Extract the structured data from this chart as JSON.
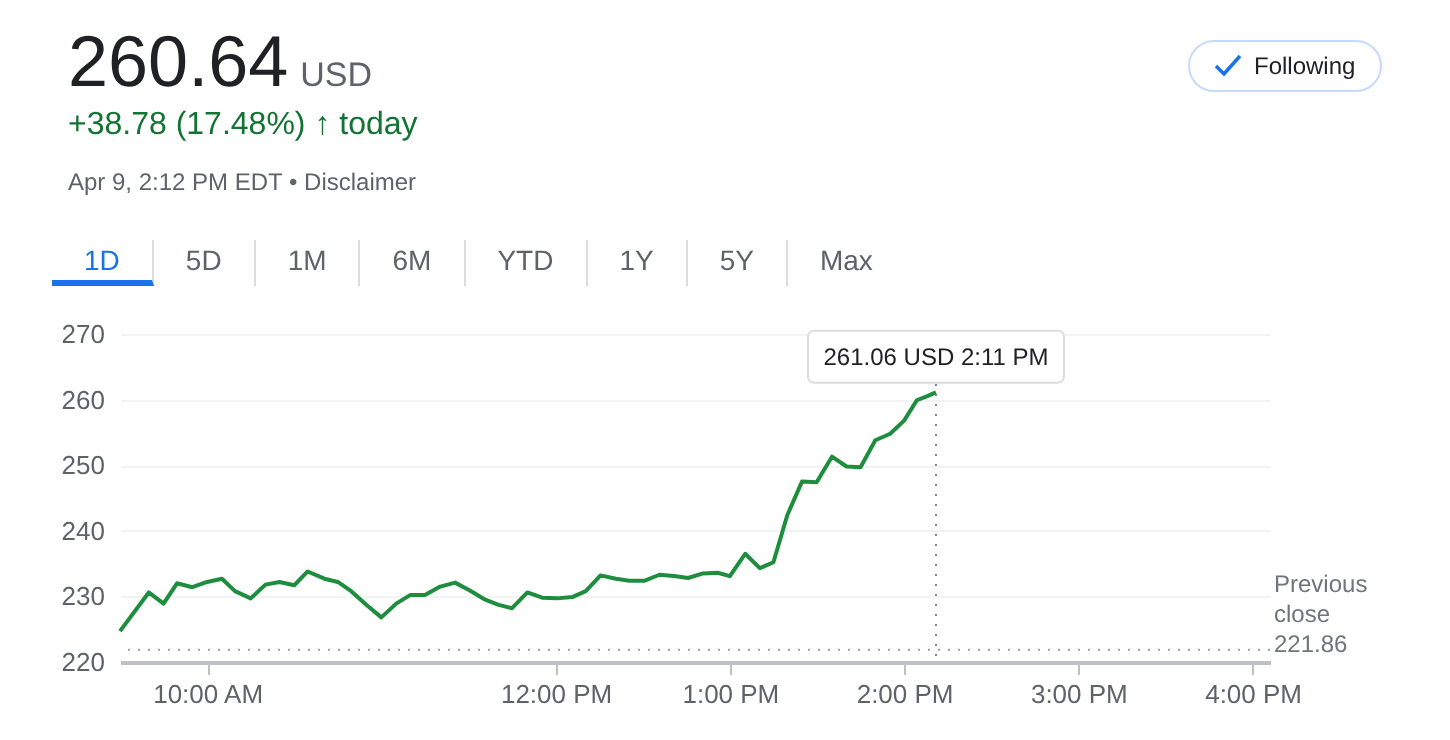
{
  "chart_data": {
    "type": "line",
    "title": "260.64 USD",
    "subtitle": "+38.78 (17.48%) ↑ today",
    "annotations": [
      "Apr 9, 2:12 PM EDT • Disclaimer",
      "1D",
      "5D",
      "1M",
      "6M",
      "YTD",
      "1Y",
      "5Y",
      "Max",
      "Following",
      {
        "text": "261.06 USD  2:11 PM",
        "x": 14.183,
        "y": 261.06
      }
    ],
    "x": [
      9.5,
      9.665,
      9.75,
      9.827,
      9.915,
      10.0,
      10.085,
      10.16,
      10.25,
      10.335,
      10.415,
      10.5,
      10.577,
      10.673,
      10.75,
      10.827,
      10.915,
      11.0,
      11.085,
      11.165,
      11.25,
      11.338,
      11.423,
      11.508,
      11.596,
      11.673,
      11.75,
      11.838,
      11.923,
      12.008,
      12.096,
      12.173,
      12.258,
      12.346,
      12.423,
      12.512,
      12.596,
      12.68,
      12.76,
      12.846,
      12.93,
      13.0,
      13.088,
      13.172,
      13.25,
      13.33,
      13.414,
      13.498,
      13.586,
      13.67,
      13.75,
      13.835,
      13.92,
      14.0,
      14.073,
      14.13,
      14.183
    ],
    "series": [
      {
        "color": "#1e8e3e",
        "values": [
          224.7,
          230.6,
          228.9,
          232.0,
          231.4,
          232.2,
          232.7,
          230.8,
          229.7,
          231.8,
          232.2,
          231.7,
          233.8,
          232.7,
          232.2,
          230.8,
          228.7,
          226.8,
          228.9,
          230.2,
          230.2,
          231.5,
          232.1,
          230.9,
          229.5,
          228.7,
          228.2,
          230.6,
          229.8,
          229.7,
          229.9,
          230.8,
          233.2,
          232.7,
          232.4,
          232.4,
          233.3,
          233.1,
          232.8,
          233.5,
          233.6,
          233.1,
          236.5,
          234.3,
          235.2,
          242.4,
          247.5,
          247.4,
          251.3,
          249.8,
          249.7,
          253.8,
          254.8,
          256.8,
          259.9,
          260.5,
          261.1
        ]
      }
    ],
    "xlim": [
      9.5,
      16.1
    ],
    "xticks": [
      {
        "value": 10,
        "label": "10:00 AM"
      },
      {
        "value": 12,
        "label": "12:00 PM"
      },
      {
        "value": 13,
        "label": "1:00 PM"
      },
      {
        "value": 14,
        "label": "2:00 PM"
      },
      {
        "value": 15,
        "label": "3:00 PM"
      },
      {
        "value": 16,
        "label": "4:00 PM"
      }
    ],
    "ylim": [
      220,
      270
    ],
    "yticks": [
      220,
      230,
      240,
      250,
      260,
      270
    ],
    "grid": "y",
    "marker": "none",
    "line_style": "solid",
    "ref_lines": [
      {
        "axis": "y",
        "value": 221.86,
        "label": "Previous close 221.86",
        "line_style": "dotted",
        "color": "#9aa0a6"
      },
      {
        "axis": "x",
        "value": 14.183,
        "line_style": "dotted",
        "color": "#80868b"
      }
    ]
  }
}
